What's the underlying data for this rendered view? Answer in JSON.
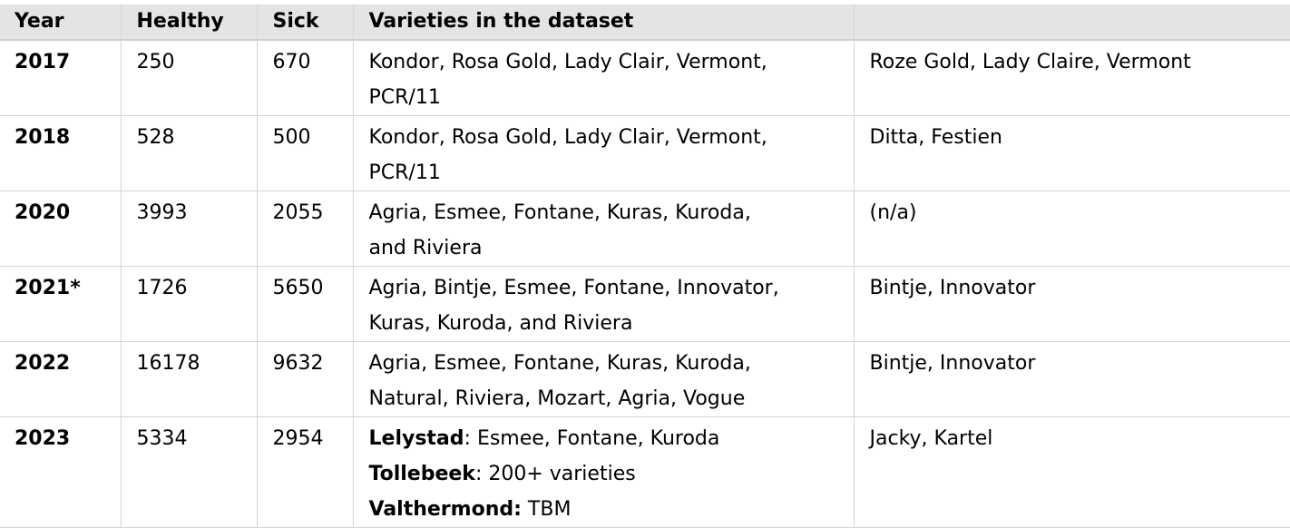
{
  "table": {
    "headers": [
      "Year",
      "Healthy",
      "Sick",
      "Varieties in the dataset",
      ""
    ],
    "rows": [
      {
        "year": "2017",
        "healthy": "250",
        "sick": "670",
        "varieties_line1": "Kondor, Rosa Gold, Lady Clair, Vermont,",
        "varieties_line2": "PCR/11",
        "extra": "Roze Gold, Lady Claire, Vermont"
      },
      {
        "year": "2018",
        "healthy": "528",
        "sick": "500",
        "varieties_line1": "Kondor, Rosa Gold, Lady Clair, Vermont,",
        "varieties_line2": "PCR/11",
        "extra": "Ditta, Festien"
      },
      {
        "year": "2020",
        "healthy": "3993",
        "sick": "2055",
        "varieties_line1": "Agria, Esmee, Fontane, Kuras, Kuroda,",
        "varieties_line2": "and Riviera",
        "extra": "(n/a)"
      },
      {
        "year": "2021*",
        "healthy": "1726",
        "sick": "5650",
        "varieties_line1": "Agria, Bintje, Esmee, Fontane, Innovator,",
        "varieties_line2": "Kuras, Kuroda, and Riviera",
        "extra": "Bintje, Innovator"
      },
      {
        "year": "2022",
        "healthy": "16178",
        "sick": "9632",
        "varieties_line1": "Agria,  Esmee, Fontane, Kuras, Kuroda,",
        "varieties_line2": "Natural, Riviera, Mozart, Agria, Vogue",
        "extra": "Bintje, Innovator"
      },
      {
        "year": "2023",
        "healthy": "5334",
        "sick": "2954",
        "locations": [
          {
            "name": "Lelystad",
            "sep": ": ",
            "value": "Esmee, Fontane, Kuroda"
          },
          {
            "name": "Tollebeek",
            "sep": ": ",
            "value": "200+ varieties"
          },
          {
            "name": "Valthermond:",
            "sep": " ",
            "value": "TBM"
          }
        ],
        "extra": "Jacky, Kartel"
      }
    ]
  }
}
